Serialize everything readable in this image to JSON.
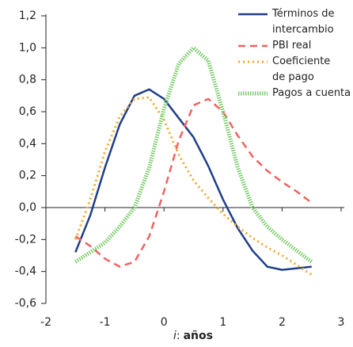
{
  "chart_data": {
    "type": "line",
    "x": [
      -1.5,
      -1.25,
      -1.0,
      -0.75,
      -0.5,
      -0.25,
      0,
      0.25,
      0.5,
      0.75,
      1.0,
      1.25,
      1.5,
      1.75,
      2.0,
      2.25,
      2.5
    ],
    "series": [
      {
        "name": "Términos de intercambio",
        "color": "#1f3f8a",
        "style": "solid",
        "values": [
          -0.28,
          -0.05,
          0.25,
          0.52,
          0.7,
          0.74,
          0.68,
          0.56,
          0.44,
          0.26,
          0.05,
          -0.13,
          -0.27,
          -0.37,
          -0.39,
          -0.38,
          -0.37
        ]
      },
      {
        "name": "PBI real",
        "color": "#f0625f",
        "style": "dashed",
        "values": [
          -0.18,
          -0.24,
          -0.32,
          -0.37,
          -0.34,
          -0.18,
          0.1,
          0.42,
          0.64,
          0.68,
          0.6,
          0.45,
          0.32,
          0.23,
          0.16,
          0.1,
          0.03
        ]
      },
      {
        "name": "Coeficiente de pago",
        "color": "#f5a623",
        "style": "dotted",
        "values": [
          -0.2,
          0.05,
          0.35,
          0.57,
          0.68,
          0.69,
          0.55,
          0.33,
          0.17,
          0.06,
          -0.04,
          -0.12,
          -0.19,
          -0.25,
          -0.3,
          -0.36,
          -0.42
        ]
      },
      {
        "name": "Pagos a cuenta",
        "color": "#7ccc6c",
        "style": "thick-dotted",
        "values": [
          -0.34,
          -0.28,
          -0.22,
          -0.12,
          0.0,
          0.25,
          0.62,
          0.9,
          1.0,
          0.92,
          0.6,
          0.25,
          0.0,
          -0.12,
          -0.2,
          -0.27,
          -0.34
        ]
      }
    ],
    "xlim": [
      -2,
      3
    ],
    "xticks": [
      -2,
      -1,
      0,
      1,
      2,
      3
    ],
    "ylim": [
      -0.6,
      1.2
    ],
    "yticks": [
      {
        "value": -0.6,
        "label": "-0,6"
      },
      {
        "value": -0.4,
        "label": "-0,4"
      },
      {
        "value": -0.2,
        "label": "-0,2"
      },
      {
        "value": 0,
        "label": "0,0"
      },
      {
        "value": 0.2,
        "label": "0,2"
      },
      {
        "value": 0.4,
        "label": "0,4"
      },
      {
        "value": 0.6,
        "label": "0,6"
      },
      {
        "value": 0.8,
        "label": "0,8"
      },
      {
        "value": 1.0,
        "label": "1,0"
      },
      {
        "value": 1.2,
        "label": "1,2"
      }
    ],
    "xlabel": [
      "i",
      ":",
      "años"
    ],
    "legend": "upper-right"
  }
}
